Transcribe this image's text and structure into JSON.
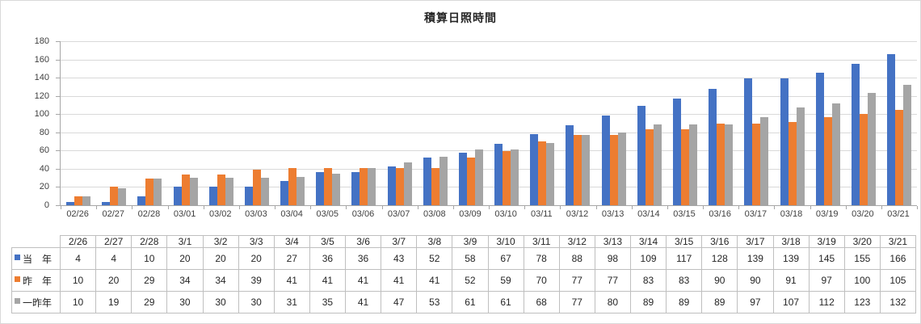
{
  "chart_data": {
    "type": "bar",
    "title": "積算日照時間",
    "xlabel": "",
    "ylabel": "",
    "ylim": [
      0,
      180
    ],
    "yticks": [
      0,
      20,
      40,
      60,
      80,
      100,
      120,
      140,
      160,
      180
    ],
    "grid": true,
    "legend_position": "data-table-row-headers",
    "categories": [
      "02/26",
      "02/27",
      "02/28",
      "03/01",
      "03/02",
      "03/03",
      "03/04",
      "03/05",
      "03/06",
      "03/07",
      "03/08",
      "03/09",
      "03/10",
      "03/11",
      "03/12",
      "03/13",
      "03/14",
      "03/15",
      "03/16",
      "03/17",
      "03/18",
      "03/19",
      "03/20",
      "03/21"
    ],
    "series": [
      {
        "name": "当　年",
        "color": "#4472C4",
        "values": [
          4,
          4,
          10,
          20,
          20,
          20,
          27,
          36,
          36,
          43,
          52,
          58,
          67,
          78,
          88,
          98,
          109,
          117,
          128,
          139,
          139,
          145,
          155,
          166
        ]
      },
      {
        "name": "昨　年",
        "color": "#ED7D31",
        "values": [
          10,
          20,
          29,
          34,
          34,
          39,
          41,
          41,
          41,
          41,
          41,
          52,
          59,
          70,
          77,
          77,
          83,
          83,
          90,
          90,
          91,
          97,
          100,
          105
        ]
      },
      {
        "name": "一昨年",
        "color": "#A5A5A5",
        "values": [
          10,
          19,
          29,
          30,
          30,
          30,
          31,
          35,
          41,
          47,
          53,
          61,
          61,
          68,
          77,
          80,
          89,
          89,
          89,
          97,
          107,
          112,
          123,
          132
        ]
      }
    ]
  },
  "table": {
    "col_headers": [
      "2/26",
      "2/27",
      "2/28",
      "3/1",
      "3/2",
      "3/3",
      "3/4",
      "3/5",
      "3/6",
      "3/7",
      "3/8",
      "3/9",
      "3/10",
      "3/11",
      "3/12",
      "3/13",
      "3/14",
      "3/15",
      "3/16",
      "3/17",
      "3/18",
      "3/19",
      "3/20",
      "3/21"
    ]
  },
  "colors": {
    "series_current_year": "#4472C4",
    "series_last_year": "#ED7D31",
    "series_year_before_last": "#A5A5A5",
    "gridline": "#D9D9D9",
    "axis": "#A6A6A6",
    "table_border": "#BFBFBF"
  }
}
